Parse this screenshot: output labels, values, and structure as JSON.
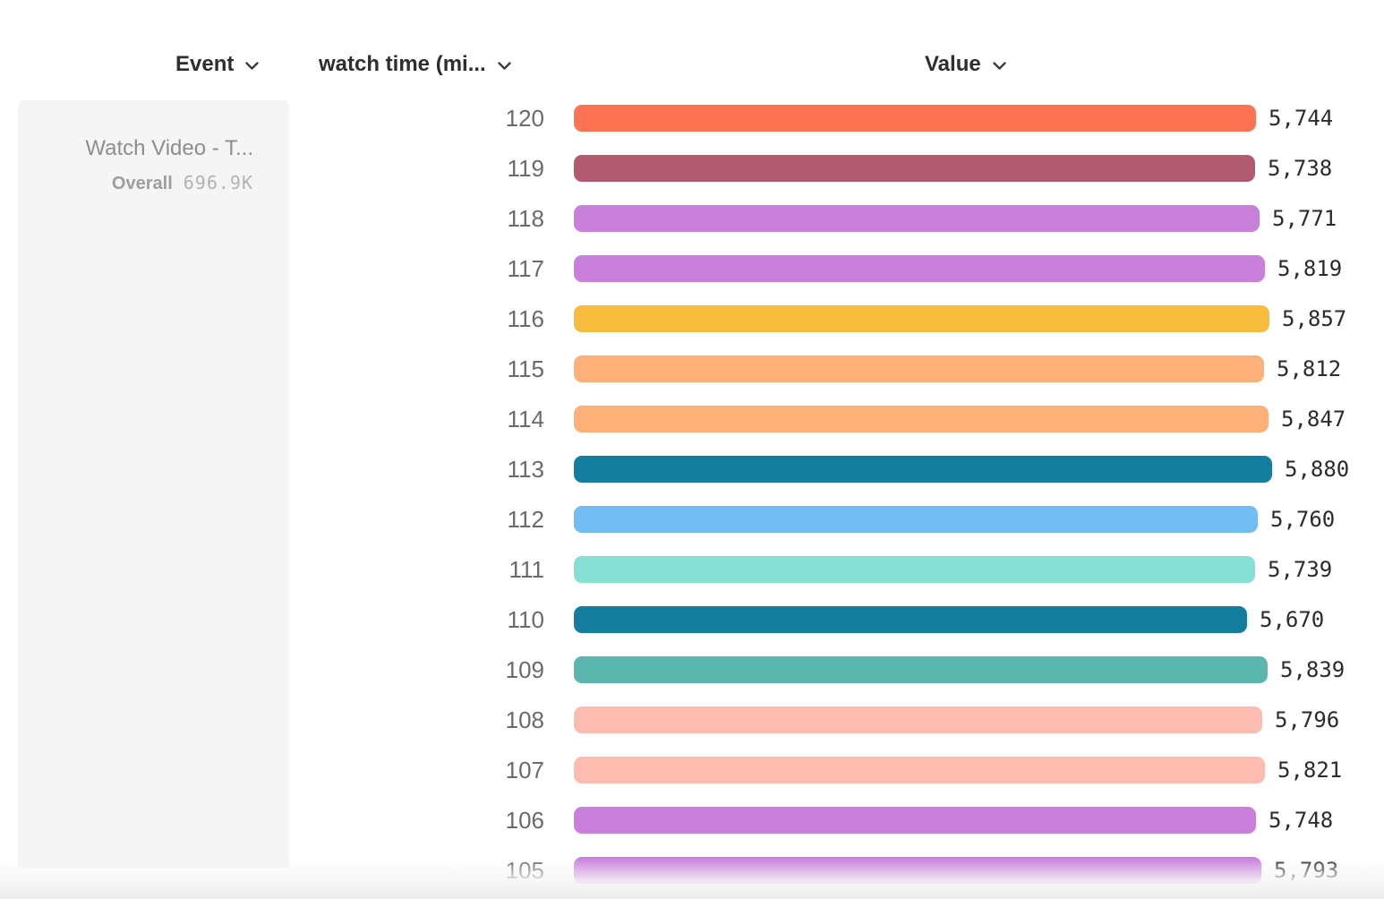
{
  "header": {
    "event_column_label": "Event",
    "breakdown_column_label": "watch time (mi...",
    "value_column_label": "Value"
  },
  "event_panel": {
    "title": "Watch Video - T...",
    "overall_label": "Overall",
    "overall_value": "696.9K"
  },
  "chart_data": {
    "type": "bar",
    "orientation": "horizontal",
    "title": "",
    "xlabel": "Value",
    "ylabel": "watch time (mi...",
    "categories": [
      "120",
      "119",
      "118",
      "117",
      "116",
      "115",
      "114",
      "113",
      "112",
      "111",
      "110",
      "109",
      "108",
      "107",
      "106",
      "105"
    ],
    "values": [
      5744,
      5738,
      5771,
      5819,
      5857,
      5812,
      5847,
      5880,
      5760,
      5739,
      5670,
      5839,
      5796,
      5821,
      5748,
      5793
    ],
    "value_labels": [
      "5,744",
      "5,738",
      "5,771",
      "5,819",
      "5,857",
      "5,812",
      "5,847",
      "5,880",
      "5,760",
      "5,739",
      "5,670",
      "5,839",
      "5,796",
      "5,821",
      "5,748",
      "5,793"
    ],
    "colors": [
      "#fd7455",
      "#b25a70",
      "#c980db",
      "#c980db",
      "#f7bb3d",
      "#fdb077",
      "#fdb077",
      "#147e9f",
      "#72bdf4",
      "#85e0d3",
      "#147e9f",
      "#5bb6ae",
      "#fdbcb0",
      "#fdbcb0",
      "#c980db",
      "#c980db"
    ],
    "xlim": [
      0,
      5880
    ],
    "grid": false,
    "legend_position": "left",
    "value_label_position": "end-of-bar"
  }
}
